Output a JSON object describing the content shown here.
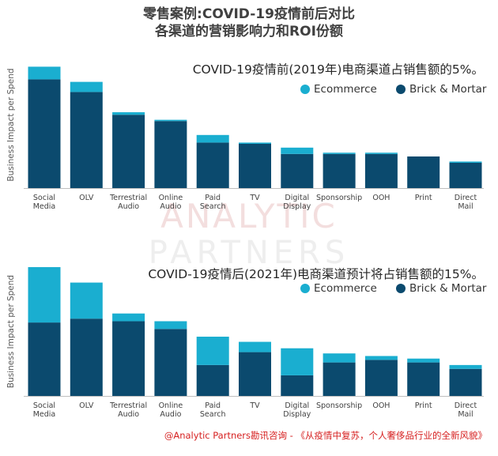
{
  "title": [
    "零售案例:COVID-19疫情前后对比",
    "各渠道的营销影响力和ROI份额"
  ],
  "watermark": {
    "line1": "ANALYTIC",
    "line2": "PARTNERS"
  },
  "footer": "@Analytic Partners勘讯咨询 - 《从疫情中复苏，个人奢侈品行业的全新风貌》",
  "colors": {
    "ecommerce": "#1aaed0",
    "brick": "#0b4a6e",
    "axis": "#bfbfbf"
  },
  "chart_data": [
    {
      "type": "bar",
      "stacked": true,
      "title": "COVID-19疫情前(2019年)电商渠道占销售额的5%。",
      "ylabel": "Business Impact per Spend",
      "xlabel": "",
      "categories": [
        [
          "Social",
          "Media"
        ],
        [
          "OLV"
        ],
        [
          "Terrestrial",
          "Audio"
        ],
        [
          "Online",
          "Audio"
        ],
        [
          "Paid",
          "Search"
        ],
        [
          "TV"
        ],
        [
          "Digital",
          "Display"
        ],
        [
          "Sponsorship"
        ],
        [
          "OOH"
        ],
        [
          "Print"
        ],
        [
          "Direct",
          "Mail"
        ]
      ],
      "legend": [
        "Ecommerce",
        "Brick & Mortar"
      ],
      "legend_position": "top-right",
      "ylim": [
        0,
        100
      ],
      "series": [
        {
          "name": "Brick & Mortar",
          "values": [
            86,
            76,
            58,
            53,
            36,
            35,
            27,
            27,
            27,
            25,
            20
          ]
        },
        {
          "name": "Ecommerce",
          "values": [
            10,
            8,
            2,
            1,
            6,
            1,
            5,
            1,
            1,
            0,
            1
          ]
        }
      ]
    },
    {
      "type": "bar",
      "stacked": true,
      "title": "COVID-19疫情后(2021年)电商渠道预计将占销售额的15%。",
      "ylabel": "Business Impact per Spend",
      "xlabel": "",
      "categories": [
        [
          "Social",
          "Media"
        ],
        [
          "OLV"
        ],
        [
          "Terrestrial",
          "Audio"
        ],
        [
          "Online",
          "Audio"
        ],
        [
          "Paid",
          "Search"
        ],
        [
          "TV"
        ],
        [
          "Digital",
          "Display"
        ],
        [
          "Sponsorship"
        ],
        [
          "OOH"
        ],
        [
          "Print"
        ],
        [
          "Direct",
          "Mail"
        ]
      ],
      "legend": [
        "Ecommerce",
        "Brick & Mortar"
      ],
      "legend_position": "top-right",
      "ylim": [
        0,
        100
      ],
      "series": [
        {
          "name": "Brick & Mortar",
          "values": [
            57,
            60,
            58,
            52,
            24,
            34,
            16,
            26,
            28,
            26,
            21
          ]
        },
        {
          "name": "Ecommerce",
          "values": [
            43,
            28,
            6,
            6,
            22,
            8,
            21,
            7,
            3,
            3,
            3
          ]
        }
      ]
    }
  ]
}
